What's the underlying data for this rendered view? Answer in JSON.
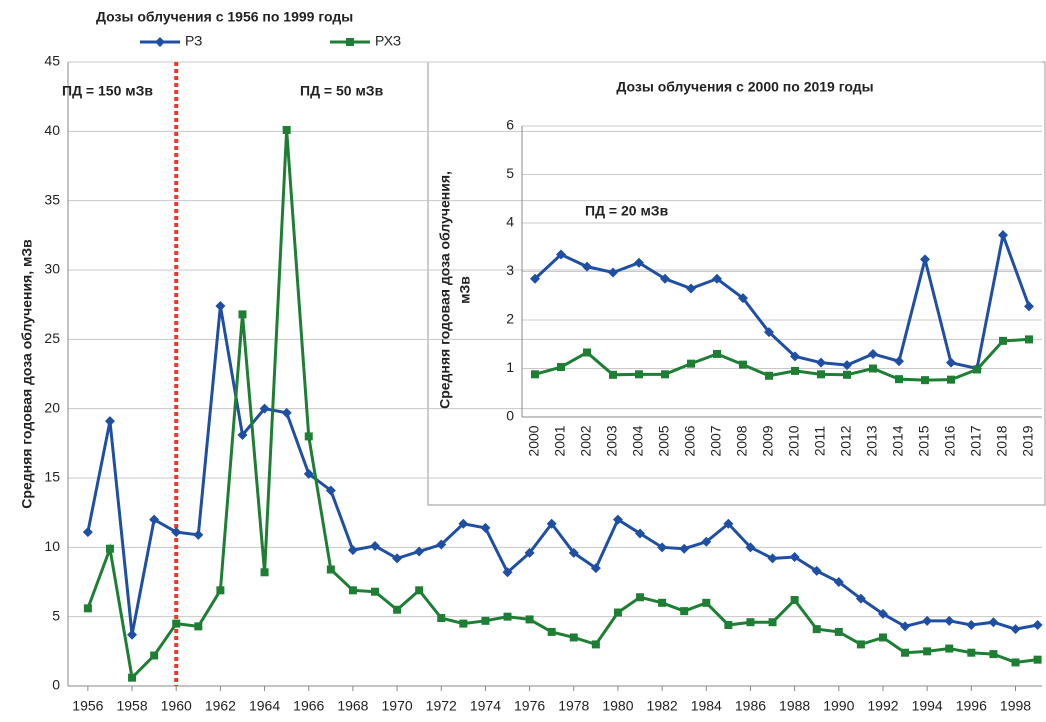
{
  "chart_data": [
    {
      "type": "line",
      "title": "Дозы облучения с 1956 по 1999 годы",
      "y_label": "Средняя годовая доза облучения, мЗв",
      "x": [
        1956,
        1957,
        1958,
        1959,
        1960,
        1961,
        1962,
        1963,
        1964,
        1965,
        1966,
        1967,
        1968,
        1969,
        1970,
        1971,
        1972,
        1973,
        1974,
        1975,
        1976,
        1977,
        1978,
        1979,
        1980,
        1981,
        1982,
        1983,
        1984,
        1985,
        1986,
        1987,
        1988,
        1989,
        1990,
        1991,
        1992,
        1993,
        1994,
        1995,
        1996,
        1997,
        1998,
        1999
      ],
      "series": [
        {
          "name": "РЗ",
          "color": "#1f4fa3",
          "marker": "diamond",
          "values": [
            11.1,
            19.1,
            3.7,
            12.0,
            11.1,
            10.9,
            27.4,
            18.1,
            20.0,
            19.7,
            15.3,
            14.1,
            9.8,
            10.1,
            9.2,
            9.7,
            10.2,
            11.7,
            11.4,
            8.2,
            9.6,
            11.7,
            9.6,
            8.5,
            12.0,
            11.0,
            10.0,
            9.9,
            10.4,
            11.7,
            10.0,
            9.2,
            9.3,
            8.3,
            7.5,
            6.3,
            5.2,
            4.3,
            4.7,
            4.7,
            4.4,
            4.6,
            4.1,
            4.4
          ]
        },
        {
          "name": "РХЗ",
          "color": "#1e7e34",
          "marker": "square",
          "values": [
            5.6,
            9.9,
            0.6,
            2.2,
            4.5,
            4.3,
            6.9,
            26.8,
            8.2,
            40.1,
            18.0,
            8.4,
            6.9,
            6.8,
            5.5,
            6.9,
            4.9,
            4.5,
            4.7,
            5.0,
            4.8,
            3.9,
            3.5,
            3.0,
            5.3,
            6.4,
            6.0,
            5.4,
            6.0,
            4.4,
            4.6,
            4.6,
            6.2,
            4.1,
            3.9,
            3.0,
            3.5,
            2.4,
            2.5,
            2.7,
            2.4,
            2.3,
            1.7,
            1.9
          ]
        }
      ],
      "xlim": [
        1955.1,
        1999.2
      ],
      "xticks": [
        1956,
        1958,
        1960,
        1962,
        1964,
        1966,
        1968,
        1970,
        1972,
        1974,
        1976,
        1978,
        1980,
        1982,
        1984,
        1986,
        1988,
        1990,
        1992,
        1994,
        1996,
        1998
      ],
      "ylim": [
        0,
        45
      ],
      "yticks": [
        0,
        5,
        10,
        15,
        20,
        25,
        30,
        35,
        40,
        45
      ],
      "grid": true,
      "legend": "top",
      "vline": {
        "x": 1960,
        "color": "#e8392a"
      },
      "annotations": [
        "ПД = 150 мЗв",
        "ПД = 50 мЗв"
      ]
    },
    {
      "type": "line",
      "title": "Дозы облучения с  2000 по 2019 годы",
      "y_label": [
        "Средняя годовая доза облучения,",
        "мЗв"
      ],
      "categories": [
        "2000",
        "2001",
        "2002",
        "2003",
        "2004",
        "2005",
        "2006",
        "2007",
        "2008",
        "2009",
        "2010",
        "2011",
        "2012",
        "2013",
        "2014",
        "2015",
        "2016",
        "2017",
        "2018",
        "2019"
      ],
      "series": [
        {
          "name": "РЗ",
          "color": "#1f4fa3",
          "marker": "diamond",
          "values": [
            2.85,
            3.35,
            3.1,
            2.98,
            3.18,
            2.85,
            2.65,
            2.85,
            2.45,
            1.75,
            1.25,
            1.12,
            1.07,
            1.3,
            1.15,
            3.25,
            1.12,
            1.0,
            3.75,
            2.28
          ]
        },
        {
          "name": "РХЗ",
          "color": "#1e7e34",
          "marker": "square",
          "values": [
            0.88,
            1.03,
            1.33,
            0.87,
            0.88,
            0.88,
            1.1,
            1.3,
            1.08,
            0.85,
            0.95,
            0.88,
            0.87,
            1.0,
            0.78,
            0.76,
            0.77,
            0.98,
            1.57,
            1.6
          ]
        }
      ],
      "ylim": [
        0,
        6
      ],
      "yticks": [
        0,
        1,
        2,
        3,
        4,
        5,
        6
      ],
      "grid": true,
      "annotations": [
        "ПД = 20 мЗв"
      ]
    }
  ]
}
